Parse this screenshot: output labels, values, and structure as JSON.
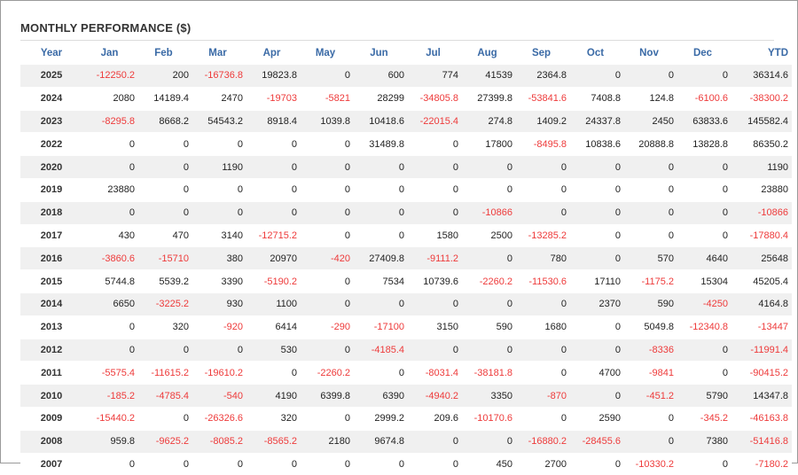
{
  "title": "MONTHLY PERFORMANCE ($)",
  "colors": {
    "negative": "#ee3a3a",
    "header": "#3a6aa6",
    "stripe": "#f0f0f0"
  },
  "columns": [
    "Year",
    "Jan",
    "Feb",
    "Mar",
    "Apr",
    "May",
    "Jun",
    "Jul",
    "Aug",
    "Sep",
    "Oct",
    "Nov",
    "Dec",
    "YTD"
  ],
  "rows": [
    [
      "2025",
      "-12250.2",
      "200",
      "-16736.8",
      "19823.8",
      "0",
      "600",
      "774",
      "41539",
      "2364.8",
      "0",
      "0",
      "0",
      "36314.6"
    ],
    [
      "2024",
      "2080",
      "14189.4",
      "2470",
      "-19703",
      "-5821",
      "28299",
      "-34805.8",
      "27399.8",
      "-53841.6",
      "7408.8",
      "124.8",
      "-6100.6",
      "-38300.2"
    ],
    [
      "2023",
      "-8295.8",
      "8668.2",
      "54543.2",
      "8918.4",
      "1039.8",
      "10418.6",
      "-22015.4",
      "274.8",
      "1409.2",
      "24337.8",
      "2450",
      "63833.6",
      "145582.4"
    ],
    [
      "2022",
      "0",
      "0",
      "0",
      "0",
      "0",
      "31489.8",
      "0",
      "17800",
      "-8495.8",
      "10838.6",
      "20888.8",
      "13828.8",
      "86350.2"
    ],
    [
      "2020",
      "0",
      "0",
      "1190",
      "0",
      "0",
      "0",
      "0",
      "0",
      "0",
      "0",
      "0",
      "0",
      "1190"
    ],
    [
      "2019",
      "23880",
      "0",
      "0",
      "0",
      "0",
      "0",
      "0",
      "0",
      "0",
      "0",
      "0",
      "0",
      "23880"
    ],
    [
      "2018",
      "0",
      "0",
      "0",
      "0",
      "0",
      "0",
      "0",
      "-10866",
      "0",
      "0",
      "0",
      "0",
      "-10866"
    ],
    [
      "2017",
      "430",
      "470",
      "3140",
      "-12715.2",
      "0",
      "0",
      "1580",
      "2500",
      "-13285.2",
      "0",
      "0",
      "0",
      "-17880.4"
    ],
    [
      "2016",
      "-3860.6",
      "-15710",
      "380",
      "20970",
      "-420",
      "27409.8",
      "-9111.2",
      "0",
      "780",
      "0",
      "570",
      "4640",
      "25648"
    ],
    [
      "2015",
      "5744.8",
      "5539.2",
      "3390",
      "-5190.2",
      "0",
      "7534",
      "10739.6",
      "-2260.2",
      "-11530.6",
      "17110",
      "-1175.2",
      "15304",
      "45205.4"
    ],
    [
      "2014",
      "6650",
      "-3225.2",
      "930",
      "1100",
      "0",
      "0",
      "0",
      "0",
      "0",
      "2370",
      "590",
      "-4250",
      "4164.8"
    ],
    [
      "2013",
      "0",
      "320",
      "-920",
      "6414",
      "-290",
      "-17100",
      "3150",
      "590",
      "1680",
      "0",
      "5049.8",
      "-12340.8",
      "-13447"
    ],
    [
      "2012",
      "0",
      "0",
      "0",
      "530",
      "0",
      "-4185.4",
      "0",
      "0",
      "0",
      "0",
      "-8336",
      "0",
      "-11991.4"
    ],
    [
      "2011",
      "-5575.4",
      "-11615.2",
      "-19610.2",
      "0",
      "-2260.2",
      "0",
      "-8031.4",
      "-38181.8",
      "0",
      "4700",
      "-9841",
      "0",
      "-90415.2"
    ],
    [
      "2010",
      "-185.2",
      "-4785.4",
      "-540",
      "4190",
      "6399.8",
      "6390",
      "-4940.2",
      "3350",
      "-870",
      "0",
      "-451.2",
      "5790",
      "14347.8"
    ],
    [
      "2009",
      "-15440.2",
      "0",
      "-26326.6",
      "320",
      "0",
      "2999.2",
      "209.6",
      "-10170.6",
      "0",
      "2590",
      "0",
      "-345.2",
      "-46163.8"
    ],
    [
      "2008",
      "959.8",
      "-9625.2",
      "-8085.2",
      "-8565.2",
      "2180",
      "9674.8",
      "0",
      "0",
      "-16880.2",
      "-28455.6",
      "0",
      "7380",
      "-51416.8"
    ],
    [
      "2007",
      "0",
      "0",
      "0",
      "0",
      "0",
      "0",
      "0",
      "450",
      "2700",
      "0",
      "-10330.2",
      "0",
      "-7180.2"
    ]
  ]
}
